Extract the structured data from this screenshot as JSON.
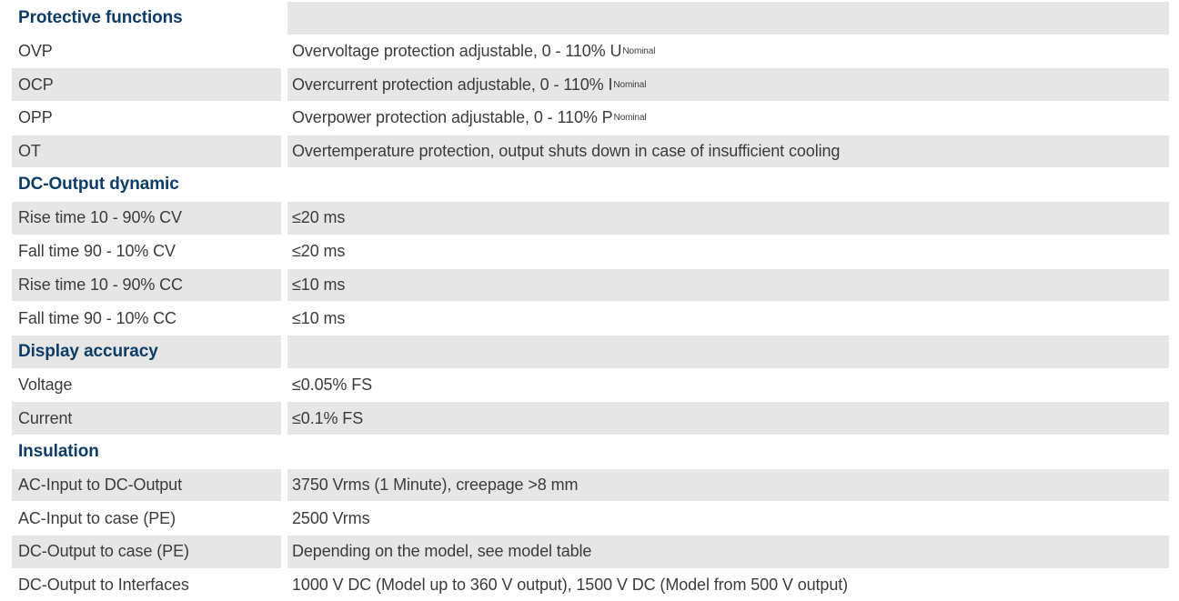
{
  "sections": [
    {
      "title": "Protective functions",
      "rows": [
        {
          "label": "OVP",
          "value": "Overvoltage protection adjustable, 0 - 110% U",
          "sub": "Nominal"
        },
        {
          "label": "OCP",
          "value": "Overcurrent protection adjustable, 0 - 110% I",
          "sub": "Nominal"
        },
        {
          "label": "OPP",
          "value": "Overpower protection adjustable, 0 - 110% P",
          "sub": "Nominal"
        },
        {
          "label": "OT",
          "value": "Overtemperature protection, output shuts down in case of insufficient cooling",
          "sub": ""
        }
      ]
    },
    {
      "title": "DC-Output dynamic",
      "rows": [
        {
          "label": "Rise time 10 - 90% CV",
          "value": "≤20 ms"
        },
        {
          "label": "Fall time 90 - 10% CV",
          "value": "≤20 ms"
        },
        {
          "label": "Rise time 10 - 90% CC",
          "value": "≤10 ms"
        },
        {
          "label": "Fall time 90 - 10% CC",
          "value": "≤10 ms"
        }
      ]
    },
    {
      "title": "Display accuracy",
      "rows": [
        {
          "label": "Voltage",
          "value": "≤0.05% FS"
        },
        {
          "label": "Current",
          "value": "≤0.1% FS"
        }
      ]
    },
    {
      "title": "Insulation",
      "rows": [
        {
          "label": "AC-Input to DC-Output",
          "value": "3750 Vrms (1 Minute), creepage >8 mm"
        },
        {
          "label": "AC-Input to case (PE)",
          "value": "2500 Vrms"
        },
        {
          "label": "DC-Output to case (PE)",
          "value": "Depending on the model, see model table"
        },
        {
          "label": "DC-Output to Interfaces",
          "value": "1000 V DC (Model up to 360 V output), 1500 V DC (Model from 500 V output)"
        }
      ]
    }
  ],
  "colors": {
    "heading": "#0d3d66",
    "text": "#3b3b3b",
    "shade": "#e6e6e6"
  }
}
